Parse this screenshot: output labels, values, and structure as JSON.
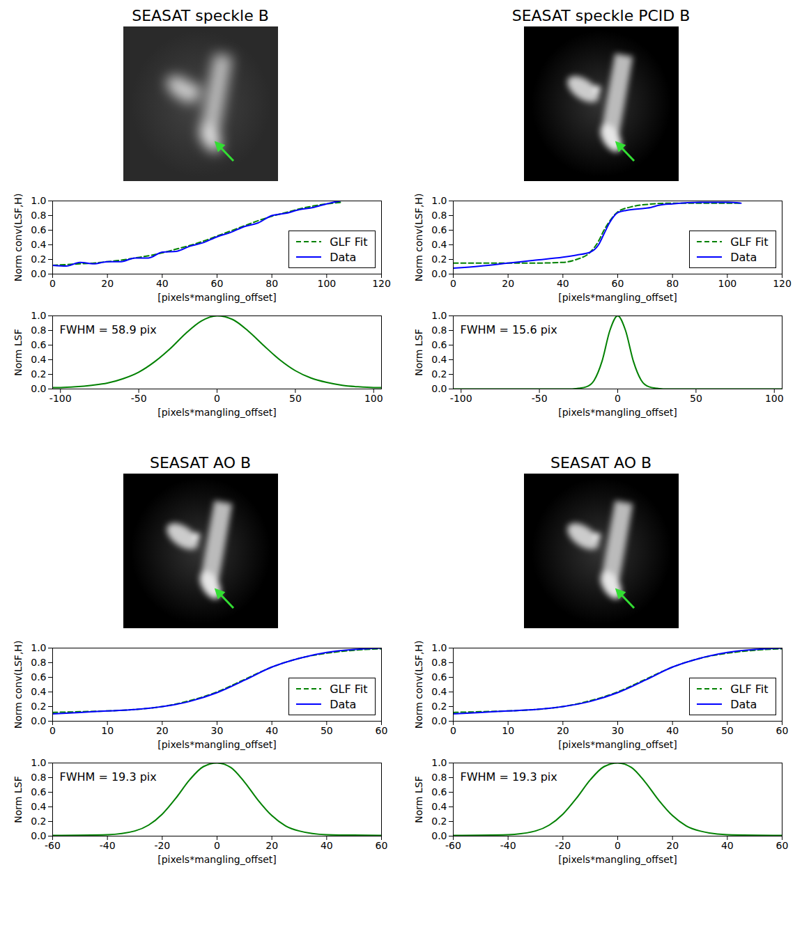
{
  "chart_data": [
    {
      "type": "line",
      "title": "SEASAT speckle B",
      "xlabel": "[pixels*mangling_offset]",
      "ylabel": "Norm conv(LSF,H)",
      "xlim": [
        0,
        120
      ],
      "xticks": [
        0,
        20,
        40,
        60,
        80,
        100,
        120
      ],
      "ylim": [
        0,
        1
      ],
      "yticks": [
        {
          "value": 0,
          "label": "0.0"
        },
        0.2,
        0.4,
        0.6,
        0.8,
        {
          "value": 1,
          "label": "1.0"
        }
      ],
      "legend": "lower right",
      "series": [
        {
          "name": "GLF Fit",
          "color": "#008000",
          "line_style": "dashed",
          "x": [
            0,
            5,
            10,
            15,
            20,
            25,
            30,
            35,
            40,
            45,
            50,
            55,
            60,
            65,
            70,
            75,
            80,
            85,
            90,
            95,
            100,
            105
          ],
          "values": [
            0.12,
            0.13,
            0.14,
            0.15,
            0.17,
            0.19,
            0.22,
            0.25,
            0.29,
            0.34,
            0.39,
            0.45,
            0.52,
            0.59,
            0.66,
            0.73,
            0.79,
            0.84,
            0.89,
            0.93,
            0.96,
            0.98
          ]
        },
        {
          "name": "Data",
          "color": "#0000ff",
          "line_style": "solid",
          "x": [
            0,
            5,
            10,
            15,
            20,
            25,
            30,
            35,
            40,
            45,
            50,
            55,
            60,
            65,
            70,
            75,
            80,
            85,
            90,
            95,
            100,
            105
          ],
          "values": [
            0.12,
            0.11,
            0.16,
            0.14,
            0.17,
            0.17,
            0.22,
            0.22,
            0.3,
            0.31,
            0.38,
            0.43,
            0.51,
            0.57,
            0.65,
            0.7,
            0.8,
            0.83,
            0.88,
            0.91,
            0.96,
            1.0
          ]
        }
      ]
    },
    {
      "type": "line",
      "xlabel": "[pixels*mangling_offset]",
      "ylabel": "Norm LSF",
      "annotation": "FWHM = 58.9 pix",
      "xlim": [
        -105,
        105
      ],
      "xticks": [
        -100,
        -50,
        0,
        50,
        100
      ],
      "ylim": [
        0,
        1
      ],
      "yticks": [
        {
          "value": 0,
          "label": "0.0"
        },
        0.2,
        0.4,
        0.6,
        0.8,
        {
          "value": 1,
          "label": "1.0"
        }
      ],
      "series": [
        {
          "color": "#008000",
          "line_style": "solid",
          "x": [
            -105,
            -100,
            -90,
            -80,
            -70,
            -60,
            -50,
            -40,
            -30,
            -20,
            -10,
            0,
            10,
            20,
            30,
            40,
            50,
            60,
            70,
            80,
            90,
            100,
            105
          ],
          "values": [
            0.02,
            0.02,
            0.03,
            0.05,
            0.08,
            0.14,
            0.23,
            0.37,
            0.55,
            0.76,
            0.93,
            1.0,
            0.95,
            0.79,
            0.59,
            0.4,
            0.25,
            0.15,
            0.09,
            0.05,
            0.03,
            0.02,
            0.02
          ]
        }
      ]
    },
    {
      "type": "line",
      "title": "SEASAT speckle PCID B",
      "xlabel": "[pixels*mangling_offset]",
      "ylabel": "Norm conv(LSF,H)",
      "xlim": [
        0,
        120
      ],
      "xticks": [
        0,
        20,
        40,
        60,
        80,
        100,
        120
      ],
      "ylim": [
        0,
        1
      ],
      "yticks": [
        {
          "value": 0,
          "label": "0.0"
        },
        0.2,
        0.4,
        0.6,
        0.8,
        {
          "value": 1,
          "label": "1.0"
        }
      ],
      "legend": "lower right",
      "series": [
        {
          "name": "GLF Fit",
          "color": "#008000",
          "line_style": "dashed",
          "x": [
            0,
            10,
            20,
            30,
            40,
            45,
            50,
            53,
            55,
            57,
            60,
            65,
            70,
            80,
            90,
            100,
            105
          ],
          "values": [
            0.15,
            0.15,
            0.15,
            0.15,
            0.16,
            0.2,
            0.3,
            0.45,
            0.6,
            0.72,
            0.85,
            0.92,
            0.95,
            0.97,
            0.97,
            0.97,
            0.97
          ]
        },
        {
          "name": "Data",
          "color": "#0000ff",
          "line_style": "solid",
          "x": [
            0,
            10,
            20,
            30,
            40,
            45,
            50,
            53,
            55,
            57,
            60,
            63,
            65,
            70,
            72,
            75,
            80,
            90,
            100,
            105
          ],
          "values": [
            0.08,
            0.11,
            0.15,
            0.19,
            0.23,
            0.26,
            0.3,
            0.4,
            0.55,
            0.7,
            0.84,
            0.87,
            0.88,
            0.9,
            0.91,
            0.94,
            0.96,
            0.98,
            0.98,
            0.97
          ]
        }
      ]
    },
    {
      "type": "line",
      "xlabel": "[pixels*mangling_offset]",
      "ylabel": "Norm LSF",
      "annotation": "FWHM = 15.6 pix",
      "xlim": [
        -105,
        105
      ],
      "xticks": [
        -100,
        -50,
        0,
        50,
        100
      ],
      "ylim": [
        0,
        1
      ],
      "yticks": [
        {
          "value": 0,
          "label": "0.0"
        },
        0.2,
        0.4,
        0.6,
        0.8,
        {
          "value": 1,
          "label": "1.0"
        }
      ],
      "series": [
        {
          "color": "#008000",
          "line_style": "solid",
          "x": [
            -105,
            -50,
            -30,
            -25,
            -20,
            -15,
            -10,
            -5,
            0,
            5,
            10,
            15,
            20,
            25,
            30,
            50,
            105
          ],
          "values": [
            0,
            0,
            0,
            0.01,
            0.03,
            0.12,
            0.38,
            0.8,
            1.0,
            0.8,
            0.38,
            0.12,
            0.03,
            0.01,
            0,
            0,
            0
          ]
        }
      ]
    },
    {
      "type": "line",
      "title": "SEASAT AO B",
      "xlabel": "[pixels*mangling_offset]",
      "ylabel": "Norm conv(LSF,H)",
      "xlim": [
        0,
        60
      ],
      "xticks": [
        0,
        10,
        20,
        30,
        40,
        50,
        60
      ],
      "ylim": [
        0,
        1
      ],
      "yticks": [
        {
          "value": 0,
          "label": "0.0"
        },
        0.2,
        0.4,
        0.6,
        0.8,
        {
          "value": 1,
          "label": "1.0"
        }
      ],
      "legend": "lower right",
      "series": [
        {
          "name": "GLF Fit",
          "color": "#008000",
          "line_style": "dashed",
          "x": [
            0,
            5,
            10,
            15,
            20,
            25,
            30,
            35,
            40,
            45,
            50,
            55,
            60
          ],
          "values": [
            0.12,
            0.13,
            0.14,
            0.16,
            0.2,
            0.28,
            0.4,
            0.57,
            0.74,
            0.86,
            0.93,
            0.97,
            0.99
          ]
        },
        {
          "name": "Data",
          "color": "#0000ff",
          "line_style": "solid",
          "x": [
            0,
            5,
            10,
            15,
            20,
            25,
            30,
            35,
            40,
            45,
            50,
            55,
            60
          ],
          "values": [
            0.1,
            0.12,
            0.14,
            0.16,
            0.2,
            0.27,
            0.39,
            0.56,
            0.74,
            0.86,
            0.94,
            0.98,
            1.0
          ]
        }
      ]
    },
    {
      "type": "line",
      "xlabel": "[pixels*mangling_offset]",
      "ylabel": "Norm LSF",
      "annotation": "FWHM = 19.3 pix",
      "xlim": [
        -60,
        60
      ],
      "xticks": [
        -60,
        -40,
        -20,
        0,
        20,
        40,
        60
      ],
      "ylim": [
        0,
        1
      ],
      "yticks": [
        {
          "value": 0,
          "label": "0.0"
        },
        0.2,
        0.4,
        0.6,
        0.8,
        {
          "value": 1,
          "label": "1.0"
        }
      ],
      "series": [
        {
          "color": "#008000",
          "line_style": "solid",
          "x": [
            -60,
            -40,
            -30,
            -25,
            -20,
            -15,
            -10,
            -5,
            0,
            5,
            10,
            15,
            20,
            25,
            30,
            40,
            60
          ],
          "values": [
            0.01,
            0.02,
            0.07,
            0.15,
            0.3,
            0.52,
            0.77,
            0.95,
            1.0,
            0.94,
            0.74,
            0.49,
            0.28,
            0.14,
            0.07,
            0.02,
            0.01
          ]
        }
      ]
    },
    {
      "type": "line",
      "title": "SEASAT AO B",
      "xlabel": "[pixels*mangling_offset]",
      "ylabel": "Norm conv(LSF,H)",
      "xlim": [
        0,
        60
      ],
      "xticks": [
        0,
        10,
        20,
        30,
        40,
        50,
        60
      ],
      "ylim": [
        0,
        1
      ],
      "yticks": [
        {
          "value": 0,
          "label": "0.0"
        },
        0.2,
        0.4,
        0.6,
        0.8,
        {
          "value": 1,
          "label": "1.0"
        }
      ],
      "legend": "lower right",
      "series": [
        {
          "name": "GLF Fit",
          "color": "#008000",
          "line_style": "dashed",
          "x": [
            0,
            5,
            10,
            15,
            20,
            25,
            30,
            35,
            40,
            45,
            50,
            55,
            60
          ],
          "values": [
            0.12,
            0.13,
            0.14,
            0.16,
            0.2,
            0.28,
            0.4,
            0.57,
            0.74,
            0.86,
            0.93,
            0.97,
            0.99
          ]
        },
        {
          "name": "Data",
          "color": "#0000ff",
          "line_style": "solid",
          "x": [
            0,
            5,
            10,
            15,
            20,
            25,
            30,
            35,
            40,
            45,
            50,
            55,
            60
          ],
          "values": [
            0.1,
            0.12,
            0.14,
            0.16,
            0.2,
            0.27,
            0.39,
            0.56,
            0.74,
            0.86,
            0.94,
            0.98,
            1.0
          ]
        }
      ]
    },
    {
      "type": "line",
      "xlabel": "[pixels*mangling_offset]",
      "ylabel": "Norm LSF",
      "annotation": "FWHM = 19.3 pix",
      "xlim": [
        -60,
        60
      ],
      "xticks": [
        -60,
        -40,
        -20,
        0,
        20,
        40,
        60
      ],
      "ylim": [
        0,
        1
      ],
      "yticks": [
        {
          "value": 0,
          "label": "0.0"
        },
        0.2,
        0.4,
        0.6,
        0.8,
        {
          "value": 1,
          "label": "1.0"
        }
      ],
      "series": [
        {
          "color": "#008000",
          "line_style": "solid",
          "x": [
            -60,
            -40,
            -30,
            -25,
            -20,
            -15,
            -10,
            -5,
            0,
            5,
            10,
            15,
            20,
            25,
            30,
            40,
            60
          ],
          "values": [
            0.01,
            0.02,
            0.07,
            0.15,
            0.3,
            0.52,
            0.77,
            0.95,
            1.0,
            0.94,
            0.74,
            0.49,
            0.28,
            0.14,
            0.07,
            0.02,
            0.01
          ]
        }
      ]
    }
  ]
}
